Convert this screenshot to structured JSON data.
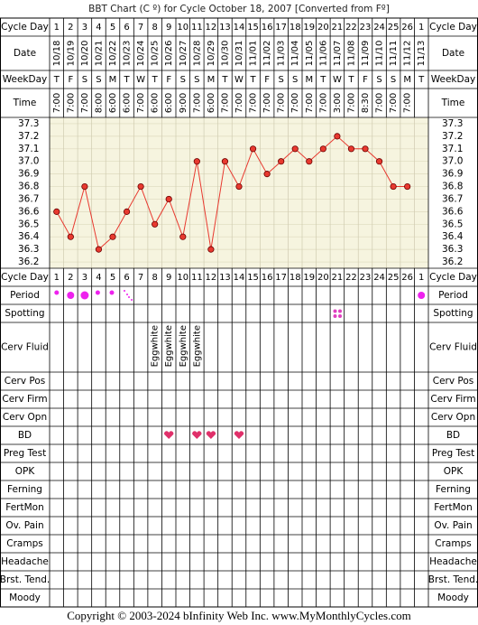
{
  "title": "BBT Chart (C º) for Cycle October 18, 2007  [Converted from Fº]",
  "footer": "Copyright © 2003-2024 bInfinity Web Inc.    www.MyMonthlyCycles.com",
  "row_labels": {
    "cycle_day": "Cycle Day",
    "date": "Date",
    "weekday": "WeekDay",
    "time": "Time",
    "period": "Period",
    "spotting": "Spotting",
    "cerv_fluid": "Cerv Fluid",
    "cerv_pos": "Cerv Pos",
    "cerv_firm": "Cerv Firm",
    "cerv_opn": "Cerv Opn",
    "bd": "BD",
    "preg_test": "Preg Test",
    "opk": "OPK",
    "ferning": "Ferning",
    "fertmon": "FertMon",
    "ov_pain": "Ov. Pain",
    "cramps": "Cramps",
    "headache": "Headache",
    "brst_tend": "Brst. Tend.",
    "moody": "Moody"
  },
  "dates": [
    "10/18",
    "10/19",
    "10/20",
    "10/21",
    "10/22",
    "10/23",
    "10/24",
    "10/25",
    "10/26",
    "10/27",
    "10/28",
    "10/29",
    "10/30",
    "10/31",
    "11/01",
    "11/02",
    "11/03",
    "11/04",
    "11/05",
    "11/06",
    "11/07",
    "11/08",
    "11/09",
    "11/10",
    "11/11",
    "11/12",
    "11/13"
  ],
  "weekdays": [
    "T",
    "F",
    "S",
    "S",
    "M",
    "T",
    "W",
    "T",
    "F",
    "S",
    "S",
    "M",
    "T",
    "W",
    "T",
    "F",
    "S",
    "S",
    "M",
    "T",
    "W",
    "T",
    "F",
    "S",
    "S",
    "M",
    "T"
  ],
  "times": [
    "7:00",
    "7:00",
    "7:00",
    "8:00",
    "6:00",
    "6:00",
    "7:00",
    "6:00",
    "6:00",
    "9:00",
    "7:00",
    "6:00",
    "7:00",
    "7:00",
    "7:00",
    "7:00",
    "7:00",
    "7:00",
    "7:00",
    "7:00",
    "3:00",
    "7:00",
    "8:30",
    "7:00",
    "7:00",
    "7:00",
    null
  ],
  "cerv_fluid": [
    null,
    null,
    null,
    null,
    null,
    null,
    null,
    "Eggwhite",
    "Eggwhite",
    "Eggwhite",
    "Eggwhite",
    null,
    null,
    null,
    null,
    null,
    null,
    null,
    null,
    null,
    null,
    null,
    null,
    null,
    null,
    null,
    null
  ],
  "chart_data": {
    "type": "line",
    "categories": [
      1,
      2,
      3,
      4,
      5,
      6,
      7,
      8,
      9,
      10,
      11,
      12,
      13,
      14,
      15,
      16,
      17,
      18,
      19,
      20,
      21,
      22,
      23,
      24,
      25,
      26,
      1
    ],
    "values": [
      36.6,
      36.4,
      36.8,
      36.3,
      36.4,
      36.6,
      36.8,
      36.5,
      36.7,
      36.4,
      37.0,
      36.3,
      37.0,
      36.8,
      37.1,
      36.9,
      37.0,
      37.1,
      37.0,
      37.1,
      37.2,
      37.1,
      37.1,
      37.0,
      36.8,
      36.8,
      null
    ],
    "color": "#e8392f",
    "ylim": [
      36.15,
      37.35
    ],
    "yticks": [
      37.3,
      37.2,
      37.1,
      {
        "value": 37,
        "label": "37.0"
      },
      36.9,
      36.8,
      36.7,
      36.6,
      36.5,
      36.4,
      36.3,
      36.2
    ],
    "grid": true
  }
}
